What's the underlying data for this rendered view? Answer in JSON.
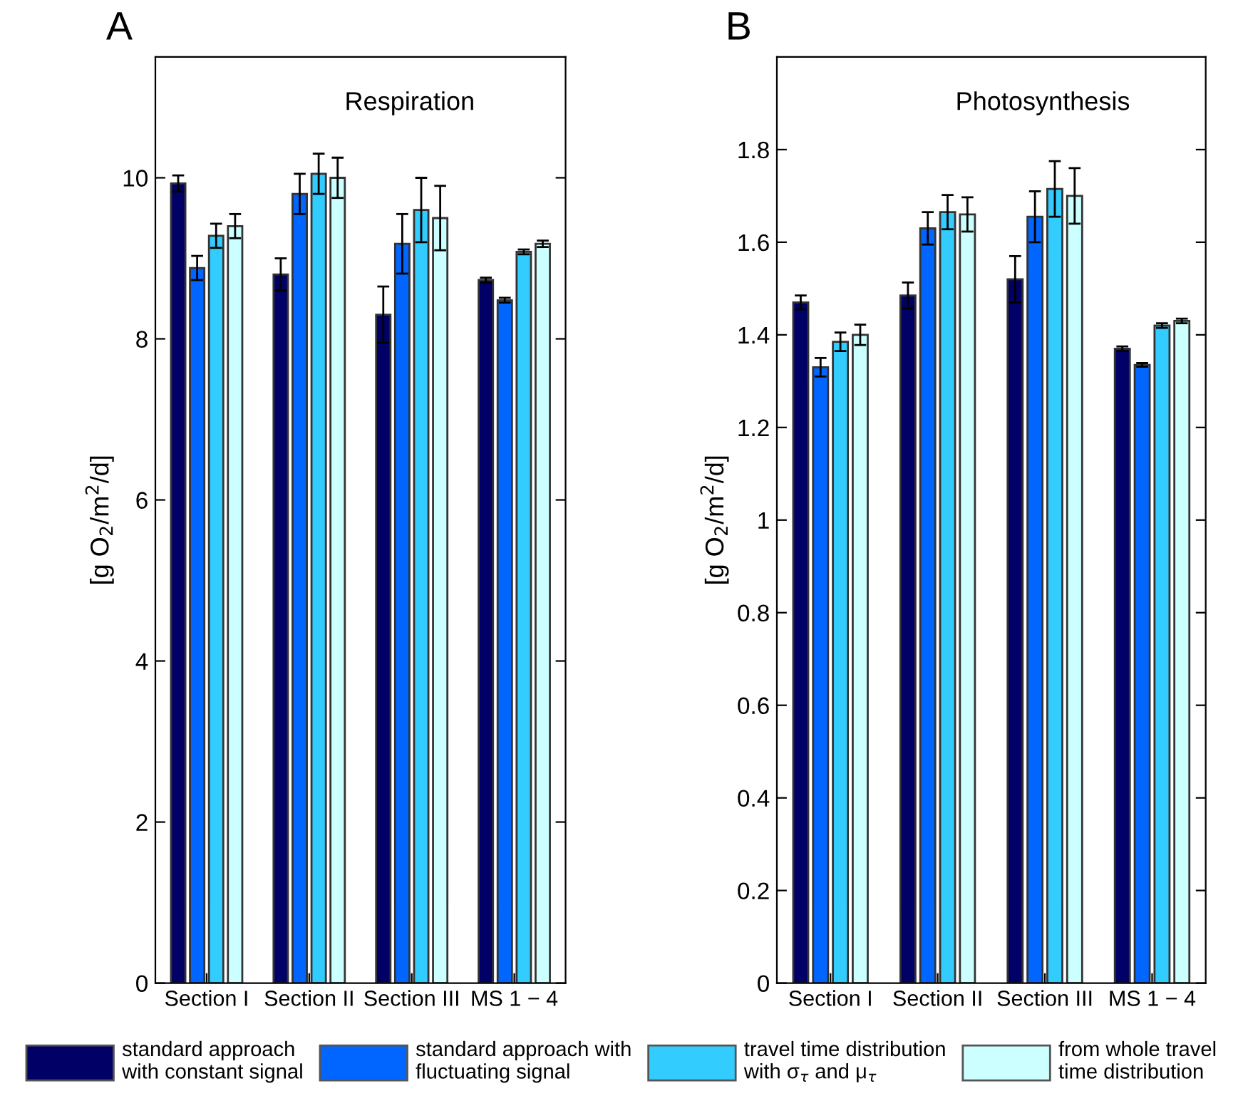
{
  "chart_data": [
    {
      "type": "bar",
      "title": "Respiration",
      "annotations": [
        "A"
      ],
      "ylabel": "[g O$_{2}$/m$^{2}$/d]",
      "categories": [
        "Section I",
        "Section II",
        "Section III",
        "MS 1 − 4"
      ],
      "ylim": [
        0,
        11.5
      ],
      "yticks": [
        0,
        2,
        4,
        6,
        8,
        10
      ],
      "grid": false,
      "legend": "bottom",
      "series": [
        {
          "name": "standard approach\nwith constant signal",
          "color": "#000066",
          "values": [
            9.93,
            8.8,
            8.3,
            8.73
          ],
          "errors": [
            0.1,
            0.2,
            0.35,
            0.03
          ]
        },
        {
          "name": "standard approach with\nfluctuating signal",
          "color": "#0066ff",
          "values": [
            8.88,
            9.8,
            9.18,
            8.48
          ],
          "errors": [
            0.15,
            0.25,
            0.37,
            0.03
          ]
        },
        {
          "name": "travel time distribution\nwith σ$_{τ}$ and μ$_{τ}$",
          "color": "#33ccff",
          "values": [
            9.28,
            10.05,
            9.6,
            9.08
          ],
          "errors": [
            0.15,
            0.25,
            0.4,
            0.03
          ]
        },
        {
          "name": "from whole travel\ntime distribution",
          "color": "#ccffff",
          "values": [
            9.4,
            10.0,
            9.5,
            9.18
          ],
          "errors": [
            0.15,
            0.25,
            0.4,
            0.04
          ]
        }
      ]
    },
    {
      "type": "bar",
      "title": "Photosynthesis",
      "annotations": [
        "B"
      ],
      "ylabel": "[g O$_{2}$/m$^{2}$/d]",
      "categories": [
        "Section I",
        "Section II",
        "Section III",
        "MS 1 − 4"
      ],
      "ylim": [
        0,
        2
      ],
      "yticks": [
        0,
        0.2,
        0.4,
        0.6,
        0.8,
        1,
        1.2,
        1.4,
        1.6,
        1.8
      ],
      "grid": false,
      "series": [
        {
          "color": "#000066",
          "values": [
            1.47,
            1.485,
            1.52,
            1.37
          ],
          "errors": [
            0.015,
            0.028,
            0.05,
            0.005
          ]
        },
        {
          "color": "#0066ff",
          "values": [
            1.33,
            1.63,
            1.655,
            1.335
          ],
          "errors": [
            0.02,
            0.035,
            0.055,
            0.004
          ]
        },
        {
          "color": "#33ccff",
          "values": [
            1.385,
            1.665,
            1.715,
            1.42
          ],
          "errors": [
            0.02,
            0.037,
            0.06,
            0.005
          ]
        },
        {
          "color": "#ccffff",
          "values": [
            1.4,
            1.66,
            1.7,
            1.43
          ],
          "errors": [
            0.022,
            0.037,
            0.06,
            0.005
          ]
        }
      ]
    }
  ]
}
